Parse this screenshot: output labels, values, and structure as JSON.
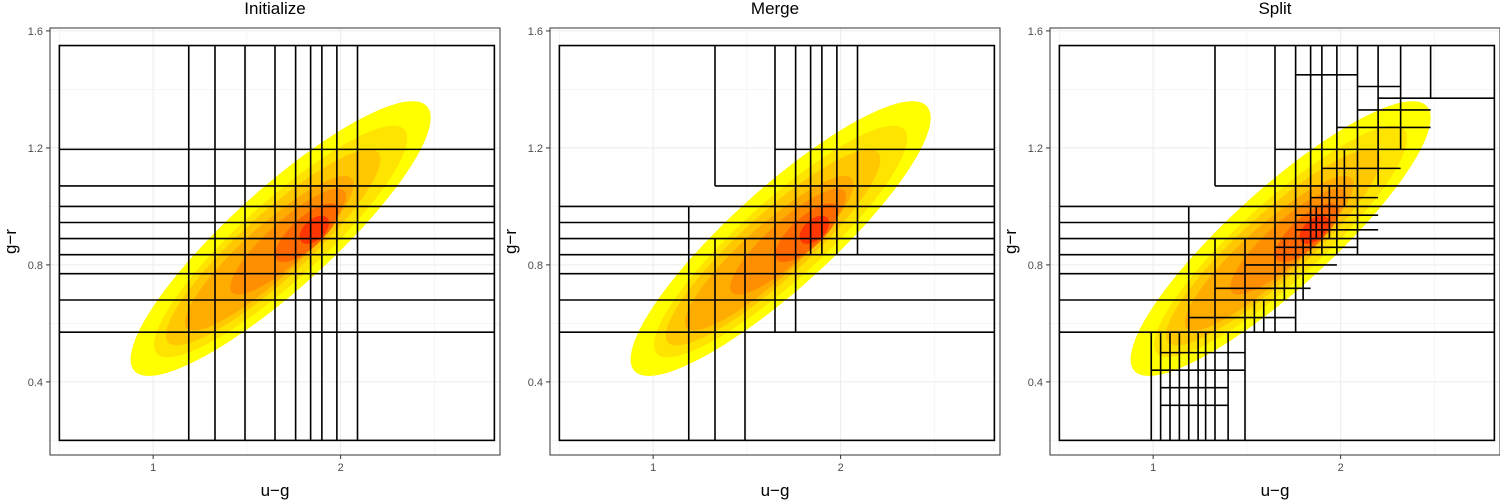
{
  "chart_data": [
    {
      "type": "heatmap",
      "title": "Initialize",
      "xlabel": "u−g",
      "ylabel": "g−r",
      "xlim": [
        0.45,
        2.85
      ],
      "ylim": [
        0.15,
        1.61
      ],
      "x_ticks": [
        1,
        2
      ],
      "x_tick_labels": [
        "1",
        "2"
      ],
      "y_ticks": [
        0.4,
        0.8,
        1.2,
        1.6
      ],
      "y_tick_labels": [
        "0.4",
        "0.8",
        "1.2",
        "1.6"
      ],
      "grid": true,
      "density_colors": [
        "#ffff00",
        "#ffe400",
        "#ffc800",
        "#ffac00",
        "#ff8f00",
        "#ff6a00",
        "#ff3600"
      ],
      "partition": {
        "bounds": [
          0.5,
          2.82,
          0.2,
          1.55
        ],
        "vertical_lines": [
          {
            "x": 1.19,
            "y0": 0.2,
            "y1": 1.55
          },
          {
            "x": 1.33,
            "y0": 0.2,
            "y1": 1.55
          },
          {
            "x": 1.49,
            "y0": 0.2,
            "y1": 1.55
          },
          {
            "x": 1.65,
            "y0": 0.2,
            "y1": 1.55
          },
          {
            "x": 1.76,
            "y0": 0.2,
            "y1": 1.55
          },
          {
            "x": 1.84,
            "y0": 0.2,
            "y1": 1.55
          },
          {
            "x": 1.9,
            "y0": 0.2,
            "y1": 1.55
          },
          {
            "x": 1.98,
            "y0": 0.2,
            "y1": 1.55
          },
          {
            "x": 2.09,
            "y0": 0.2,
            "y1": 1.55
          }
        ],
        "horizontal_lines": [
          {
            "y": 0.57,
            "x0": 0.5,
            "x1": 2.82
          },
          {
            "y": 0.68,
            "x0": 0.5,
            "x1": 2.82
          },
          {
            "y": 0.77,
            "x0": 0.5,
            "x1": 2.82
          },
          {
            "y": 0.835,
            "x0": 0.5,
            "x1": 2.82
          },
          {
            "y": 0.89,
            "x0": 0.5,
            "x1": 2.82
          },
          {
            "y": 0.945,
            "x0": 0.5,
            "x1": 2.82
          },
          {
            "y": 1.0,
            "x0": 0.5,
            "x1": 2.82
          },
          {
            "y": 1.07,
            "x0": 0.5,
            "x1": 2.82
          },
          {
            "y": 1.195,
            "x0": 0.5,
            "x1": 2.82
          }
        ]
      }
    },
    {
      "type": "heatmap",
      "title": "Merge",
      "xlabel": "u−g",
      "ylabel": "g−r",
      "xlim": [
        0.45,
        2.85
      ],
      "ylim": [
        0.15,
        1.61
      ],
      "x_ticks": [
        1,
        2
      ],
      "x_tick_labels": [
        "1",
        "2"
      ],
      "y_ticks": [
        0.4,
        0.8,
        1.2,
        1.6
      ],
      "y_tick_labels": [
        "0.4",
        "0.8",
        "1.2",
        "1.6"
      ],
      "grid": true,
      "density_colors": [
        "#ffff00",
        "#ffe400",
        "#ffc800",
        "#ffac00",
        "#ff8f00",
        "#ff6a00",
        "#ff3600"
      ],
      "partition": {
        "bounds": [
          0.5,
          2.82,
          0.2,
          1.55
        ],
        "vertical_lines": [
          {
            "x": 1.19,
            "y0": 0.2,
            "y1": 1.0
          },
          {
            "x": 1.33,
            "y0": 0.2,
            "y1": 0.89
          },
          {
            "x": 1.49,
            "y0": 0.2,
            "y1": 0.89
          },
          {
            "x": 1.33,
            "y0": 1.07,
            "y1": 1.55
          },
          {
            "x": 1.65,
            "y0": 0.57,
            "y1": 1.55
          },
          {
            "x": 1.76,
            "y0": 0.57,
            "y1": 1.55
          },
          {
            "x": 1.84,
            "y0": 0.835,
            "y1": 1.55
          },
          {
            "x": 1.9,
            "y0": 0.835,
            "y1": 1.55
          },
          {
            "x": 1.98,
            "y0": 0.835,
            "y1": 1.55
          },
          {
            "x": 2.09,
            "y0": 0.835,
            "y1": 1.55
          }
        ],
        "horizontal_lines": [
          {
            "y": 0.57,
            "x0": 0.5,
            "x1": 2.82
          },
          {
            "y": 0.68,
            "x0": 0.5,
            "x1": 2.82
          },
          {
            "y": 0.77,
            "x0": 0.5,
            "x1": 2.82
          },
          {
            "y": 0.835,
            "x0": 0.5,
            "x1": 2.82
          },
          {
            "y": 0.89,
            "x0": 0.5,
            "x1": 2.82
          },
          {
            "y": 0.945,
            "x0": 0.5,
            "x1": 2.82
          },
          {
            "y": 1.0,
            "x0": 0.5,
            "x1": 2.82
          },
          {
            "y": 1.07,
            "x0": 1.33,
            "x1": 2.82
          },
          {
            "y": 1.195,
            "x0": 1.65,
            "x1": 2.82
          }
        ]
      }
    },
    {
      "type": "heatmap",
      "title": "Split",
      "xlabel": "u−g",
      "ylabel": "g−r",
      "xlim": [
        0.45,
        2.85
      ],
      "ylim": [
        0.15,
        1.61
      ],
      "x_ticks": [
        1,
        2
      ],
      "x_tick_labels": [
        "1",
        "2"
      ],
      "y_ticks": [
        0.4,
        0.8,
        1.2,
        1.6
      ],
      "y_tick_labels": [
        "0.4",
        "0.8",
        "1.2",
        "1.6"
      ],
      "grid": true,
      "density_colors": [
        "#ffff00",
        "#ffe400",
        "#ffc800",
        "#ffac00",
        "#ff8f00",
        "#ff6a00",
        "#ff3600"
      ],
      "partition": {
        "bounds": [
          0.5,
          2.82,
          0.2,
          1.55
        ],
        "vertical_lines": [
          {
            "x": 1.19,
            "y0": 0.2,
            "y1": 1.0
          },
          {
            "x": 1.33,
            "y0": 0.2,
            "y1": 0.89
          },
          {
            "x": 1.49,
            "y0": 0.2,
            "y1": 0.89
          },
          {
            "x": 1.33,
            "y0": 1.07,
            "y1": 1.55
          },
          {
            "x": 1.65,
            "y0": 0.57,
            "y1": 1.55
          },
          {
            "x": 1.76,
            "y0": 0.57,
            "y1": 1.55
          },
          {
            "x": 1.84,
            "y0": 0.835,
            "y1": 1.55
          },
          {
            "x": 1.9,
            "y0": 0.835,
            "y1": 1.55
          },
          {
            "x": 1.98,
            "y0": 0.835,
            "y1": 1.55
          },
          {
            "x": 2.09,
            "y0": 0.835,
            "y1": 1.55
          },
          {
            "x": 0.99,
            "y0": 0.2,
            "y1": 0.57
          },
          {
            "x": 1.04,
            "y0": 0.2,
            "y1": 0.57
          },
          {
            "x": 1.09,
            "y0": 0.2,
            "y1": 0.57
          },
          {
            "x": 1.14,
            "y0": 0.2,
            "y1": 0.57
          },
          {
            "x": 1.24,
            "y0": 0.2,
            "y1": 0.57
          },
          {
            "x": 1.28,
            "y0": 0.2,
            "y1": 0.57
          },
          {
            "x": 1.4,
            "y0": 0.2,
            "y1": 0.57
          },
          {
            "x": 1.54,
            "y0": 0.57,
            "y1": 0.68
          },
          {
            "x": 1.59,
            "y0": 0.57,
            "y1": 0.68
          },
          {
            "x": 1.7,
            "y0": 0.68,
            "y1": 0.89
          },
          {
            "x": 1.8,
            "y0": 0.68,
            "y1": 0.89
          },
          {
            "x": 1.87,
            "y0": 0.89,
            "y1": 1.0
          },
          {
            "x": 1.94,
            "y0": 0.89,
            "y1": 1.07
          },
          {
            "x": 2.02,
            "y0": 1.0,
            "y1": 1.195
          },
          {
            "x": 2.2,
            "y0": 1.07,
            "y1": 1.55
          },
          {
            "x": 2.32,
            "y0": 1.195,
            "y1": 1.55
          },
          {
            "x": 2.48,
            "y0": 1.37,
            "y1": 1.55
          }
        ],
        "horizontal_lines": [
          {
            "y": 0.57,
            "x0": 0.5,
            "x1": 2.82
          },
          {
            "y": 0.68,
            "x0": 0.5,
            "x1": 2.82
          },
          {
            "y": 0.77,
            "x0": 0.5,
            "x1": 2.82
          },
          {
            "y": 0.835,
            "x0": 0.5,
            "x1": 2.82
          },
          {
            "y": 0.89,
            "x0": 0.5,
            "x1": 2.82
          },
          {
            "y": 0.945,
            "x0": 0.5,
            "x1": 2.82
          },
          {
            "y": 1.0,
            "x0": 0.5,
            "x1": 2.82
          },
          {
            "y": 1.07,
            "x0": 1.33,
            "x1": 2.82
          },
          {
            "y": 1.195,
            "x0": 1.65,
            "x1": 2.82
          },
          {
            "y": 0.32,
            "x0": 1.04,
            "x1": 1.4
          },
          {
            "y": 0.38,
            "x0": 1.04,
            "x1": 1.4
          },
          {
            "y": 0.44,
            "x0": 0.99,
            "x1": 1.49
          },
          {
            "y": 0.5,
            "x0": 1.04,
            "x1": 1.49
          },
          {
            "y": 0.62,
            "x0": 1.19,
            "x1": 1.76
          },
          {
            "y": 0.72,
            "x0": 1.33,
            "x1": 1.84
          },
          {
            "y": 0.8,
            "x0": 1.49,
            "x1": 1.98
          },
          {
            "y": 0.86,
            "x0": 1.65,
            "x1": 2.09
          },
          {
            "y": 0.92,
            "x0": 1.76,
            "x1": 2.2
          },
          {
            "y": 0.97,
            "x0": 1.76,
            "x1": 2.2
          },
          {
            "y": 1.03,
            "x0": 1.84,
            "x1": 2.2
          },
          {
            "y": 1.13,
            "x0": 1.9,
            "x1": 2.32
          },
          {
            "y": 1.27,
            "x0": 1.98,
            "x1": 2.48
          },
          {
            "y": 1.33,
            "x0": 2.09,
            "x1": 2.48
          },
          {
            "y": 1.37,
            "x0": 2.2,
            "x1": 2.82
          },
          {
            "y": 1.41,
            "x0": 2.09,
            "x1": 2.32
          },
          {
            "y": 1.45,
            "x0": 1.76,
            "x1": 2.09
          }
        ]
      }
    }
  ]
}
